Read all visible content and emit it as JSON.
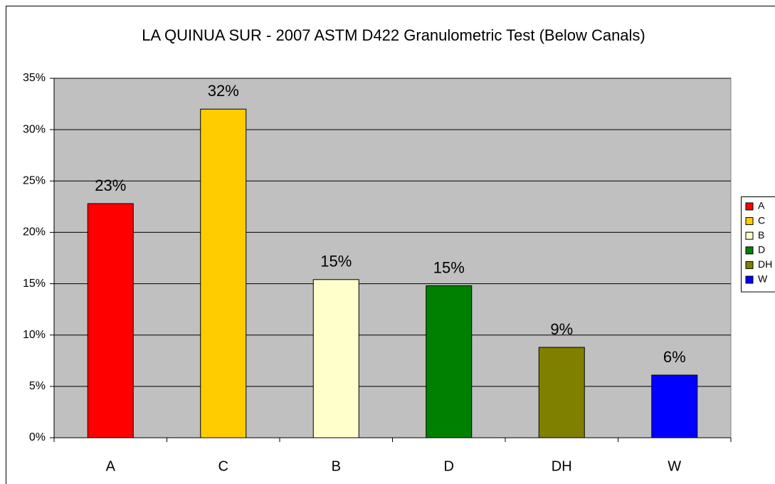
{
  "chart_data": {
    "type": "bar",
    "title": "LA QUINUA SUR - 2007 ASTM D422 Granulometric Test (Below Canals)",
    "categories": [
      "A",
      "C",
      "B",
      "D",
      "DH",
      "W"
    ],
    "values": [
      22.8,
      32.0,
      15.4,
      14.8,
      8.8,
      6.1
    ],
    "value_labels": [
      "23%",
      "32%",
      "15%",
      "15%",
      "9%",
      "6%"
    ],
    "colors": [
      "#ff0000",
      "#ffcc00",
      "#ffffcc",
      "#008000",
      "#808000",
      "#0000ff"
    ],
    "ylim": [
      0,
      35
    ],
    "yticks": [
      {
        "value": 0,
        "label": "0%"
      },
      {
        "value": 5,
        "label": "5%"
      },
      {
        "value": 10,
        "label": "10%"
      },
      {
        "value": 15,
        "label": "15%"
      },
      {
        "value": 20,
        "label": "20%"
      },
      {
        "value": 25,
        "label": "25%"
      },
      {
        "value": 30,
        "label": "30%"
      },
      {
        "value": 35,
        "label": "35%"
      }
    ],
    "grid": true,
    "legend": "right"
  }
}
